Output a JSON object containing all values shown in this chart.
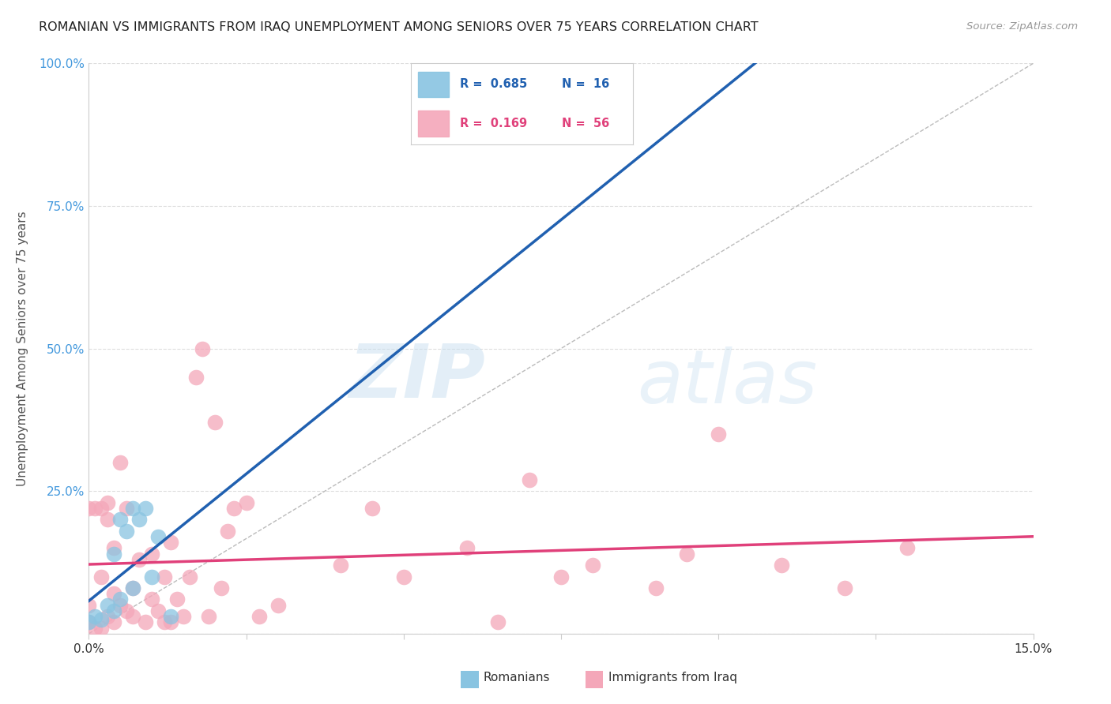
{
  "title": "ROMANIAN VS IMMIGRANTS FROM IRAQ UNEMPLOYMENT AMONG SENIORS OVER 75 YEARS CORRELATION CHART",
  "source": "Source: ZipAtlas.com",
  "ylabel": "Unemployment Among Seniors over 75 years",
  "xlabel_romanians": "Romanians",
  "xlabel_iraq": "Immigrants from Iraq",
  "xlim": [
    0.0,
    0.15
  ],
  "ylim": [
    0.0,
    1.0
  ],
  "x_ticks": [
    0.0,
    0.025,
    0.05,
    0.075,
    0.1,
    0.125,
    0.15
  ],
  "y_ticks": [
    0.0,
    0.25,
    0.5,
    0.75,
    1.0
  ],
  "romanian_R": 0.685,
  "romanian_N": 16,
  "iraq_R": 0.169,
  "iraq_N": 56,
  "romanian_color": "#89c4e1",
  "iraq_color": "#f4a7b9",
  "trendline_romanian_color": "#2060b0",
  "trendline_iraq_color": "#e0407a",
  "diag_color": "#bbbbbb",
  "watermark_zip": "ZIP",
  "watermark_atlas": "atlas",
  "romanian_points_x": [
    0.0,
    0.001,
    0.002,
    0.003,
    0.004,
    0.004,
    0.005,
    0.005,
    0.006,
    0.007,
    0.007,
    0.008,
    0.009,
    0.01,
    0.011,
    0.013
  ],
  "romanian_points_y": [
    0.02,
    0.03,
    0.025,
    0.05,
    0.04,
    0.14,
    0.06,
    0.2,
    0.18,
    0.22,
    0.08,
    0.2,
    0.22,
    0.1,
    0.17,
    0.03
  ],
  "iraq_points_x": [
    0.0,
    0.0,
    0.0,
    0.001,
    0.001,
    0.002,
    0.002,
    0.002,
    0.003,
    0.003,
    0.003,
    0.004,
    0.004,
    0.004,
    0.005,
    0.005,
    0.006,
    0.006,
    0.007,
    0.007,
    0.008,
    0.009,
    0.01,
    0.01,
    0.011,
    0.012,
    0.012,
    0.013,
    0.013,
    0.014,
    0.015,
    0.016,
    0.017,
    0.018,
    0.019,
    0.02,
    0.021,
    0.022,
    0.023,
    0.025,
    0.027,
    0.03,
    0.04,
    0.045,
    0.05,
    0.06,
    0.065,
    0.07,
    0.075,
    0.08,
    0.09,
    0.095,
    0.1,
    0.11,
    0.12,
    0.13
  ],
  "iraq_points_y": [
    0.02,
    0.05,
    0.22,
    0.01,
    0.22,
    0.01,
    0.1,
    0.22,
    0.03,
    0.2,
    0.23,
    0.02,
    0.07,
    0.15,
    0.05,
    0.3,
    0.04,
    0.22,
    0.03,
    0.08,
    0.13,
    0.02,
    0.06,
    0.14,
    0.04,
    0.02,
    0.1,
    0.16,
    0.02,
    0.06,
    0.03,
    0.1,
    0.45,
    0.5,
    0.03,
    0.37,
    0.08,
    0.18,
    0.22,
    0.23,
    0.03,
    0.05,
    0.12,
    0.22,
    0.1,
    0.15,
    0.02,
    0.27,
    0.1,
    0.12,
    0.08,
    0.14,
    0.35,
    0.12,
    0.08,
    0.15
  ]
}
